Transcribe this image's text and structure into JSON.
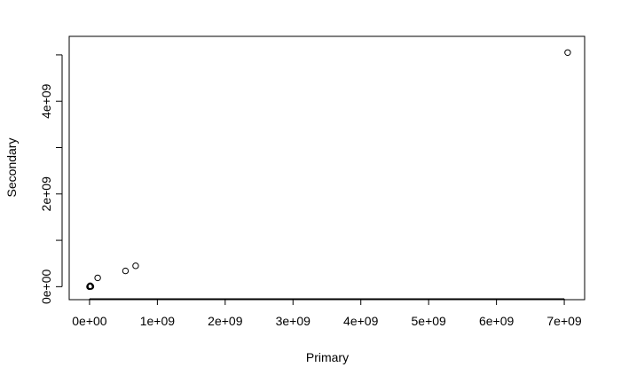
{
  "chart_data": {
    "type": "scatter",
    "title": "",
    "xlabel": "Primary",
    "ylabel": "Secondary",
    "x_range": [
      -300000000.0,
      7300000000.0
    ],
    "y_range": [
      -280000000.0,
      5400000000.0
    ],
    "x_ticks": [
      0,
      1000000000.0,
      2000000000.0,
      3000000000.0,
      4000000000.0,
      5000000000.0,
      6000000000.0,
      7000000000.0
    ],
    "x_tick_labels": [
      "0e+00",
      "1e+09",
      "2e+09",
      "3e+09",
      "4e+09",
      "5e+09",
      "6e+09",
      "7e+09"
    ],
    "y_ticks": [
      0,
      1000000000.0,
      2000000000.0,
      3000000000.0,
      4000000000.0,
      5000000000.0
    ],
    "y_tick_labels": [
      "0e+00",
      "",
      "2e+09",
      "",
      "4e+09",
      ""
    ],
    "grid": false,
    "marker": "open-circle",
    "points": [
      {
        "x": 0,
        "y": 0
      },
      {
        "x": 5000000.0,
        "y": 10000000.0
      },
      {
        "x": 10000000.0,
        "y": 20000000.0
      },
      {
        "x": 20000000.0,
        "y": 5000000.0
      },
      {
        "x": 120000000.0,
        "y": 190000000.0
      },
      {
        "x": 530000000.0,
        "y": 340000000.0
      },
      {
        "x": 680000000.0,
        "y": 450000000.0
      },
      {
        "x": 7050000000.0,
        "y": 5050000000.0
      }
    ]
  }
}
